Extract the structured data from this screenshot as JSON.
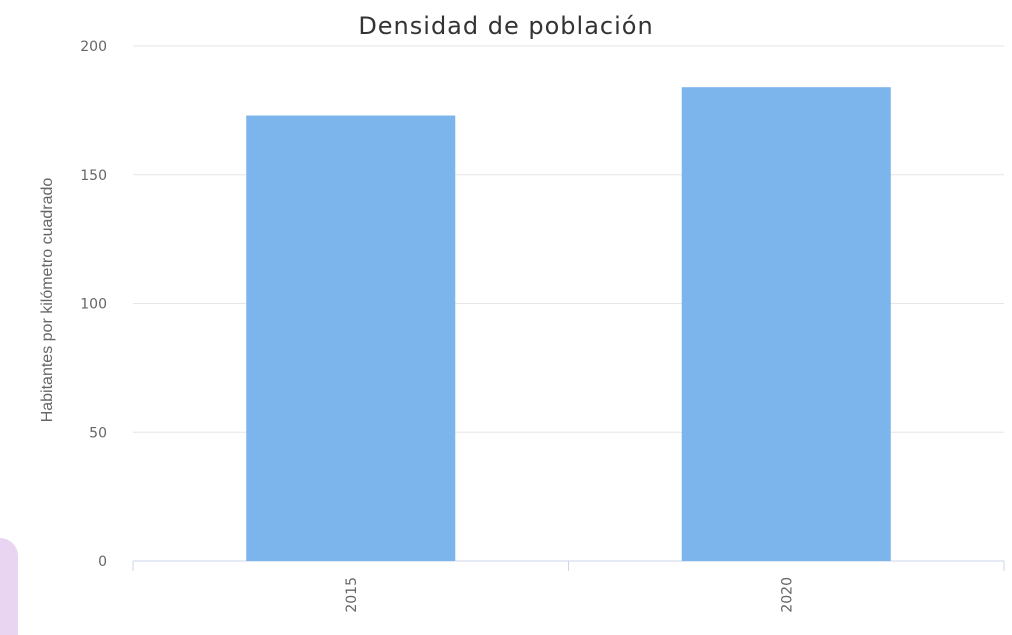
{
  "chart_data": {
    "type": "bar",
    "title": "Densidad de población",
    "xlabel": "",
    "ylabel": "Habitantes por kilómetro cuadrado",
    "categories": [
      "2015",
      "2020"
    ],
    "values": [
      173,
      184
    ],
    "ylim": [
      0,
      200
    ],
    "yticks": [
      0,
      50,
      100,
      150,
      200
    ],
    "grid": true,
    "legend": "none",
    "colors": {
      "bar": "#7cb5ec"
    }
  }
}
